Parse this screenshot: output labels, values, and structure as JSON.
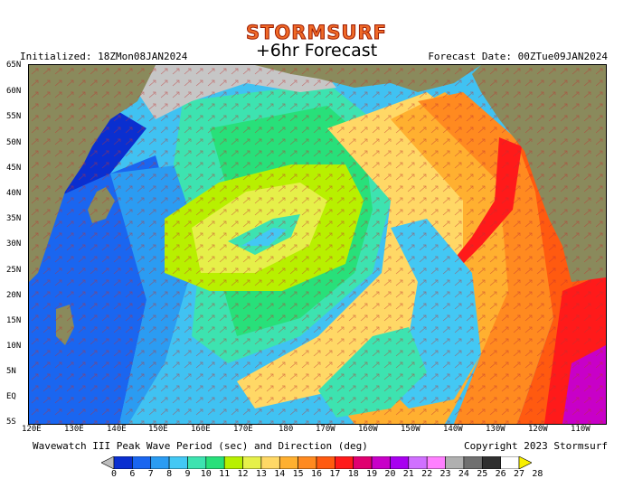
{
  "header": {
    "brand": "STORMSURF",
    "title": "+6hr Forecast",
    "initialized": "Initialized: 18ZMon08JAN2024",
    "forecast_date": "Forecast Date: 00ZTue09JAN2024"
  },
  "footer": {
    "caption": "Wavewatch III Peak Wave Period (sec) and Direction (deg)",
    "copyright": "Copyright 2023 Stormsurf"
  },
  "axes": {
    "lat_labels": [
      "65N",
      "60N",
      "55N",
      "50N",
      "45N",
      "40N",
      "35N",
      "30N",
      "25N",
      "20N",
      "15N",
      "10N",
      "5N",
      "EQ",
      "5S"
    ],
    "lon_labels": [
      "120E",
      "130E",
      "140E",
      "150E",
      "160E",
      "170E",
      "180",
      "170W",
      "160W",
      "150W",
      "140W",
      "130W",
      "120W",
      "110W"
    ]
  },
  "colorbar": {
    "labels": [
      "0",
      "6",
      "7",
      "8",
      "9",
      "10",
      "11",
      "12",
      "13",
      "14",
      "15",
      "16",
      "17",
      "18",
      "19",
      "20",
      "21",
      "22",
      "23",
      "24",
      "25",
      "26",
      "27",
      "28"
    ],
    "colors": [
      "#bdbdbd",
      "#0a2fd0",
      "#1a66f0",
      "#2b9cf2",
      "#43c8f4",
      "#3de3b0",
      "#28e07a",
      "#b8f000",
      "#e6f04a",
      "#ffd866",
      "#ffb030",
      "#ff8a20",
      "#ff5a10",
      "#ff1a1a",
      "#e00070",
      "#c800c8",
      "#a800f0",
      "#d070ff",
      "#ff80ff",
      "#b0b0b0",
      "#707070",
      "#303030",
      "#ffffff",
      "#f8f000"
    ]
  },
  "map": {
    "legend_colors": {
      "land": "#8a8a5c",
      "ice": "#c6c6c6"
    }
  }
}
